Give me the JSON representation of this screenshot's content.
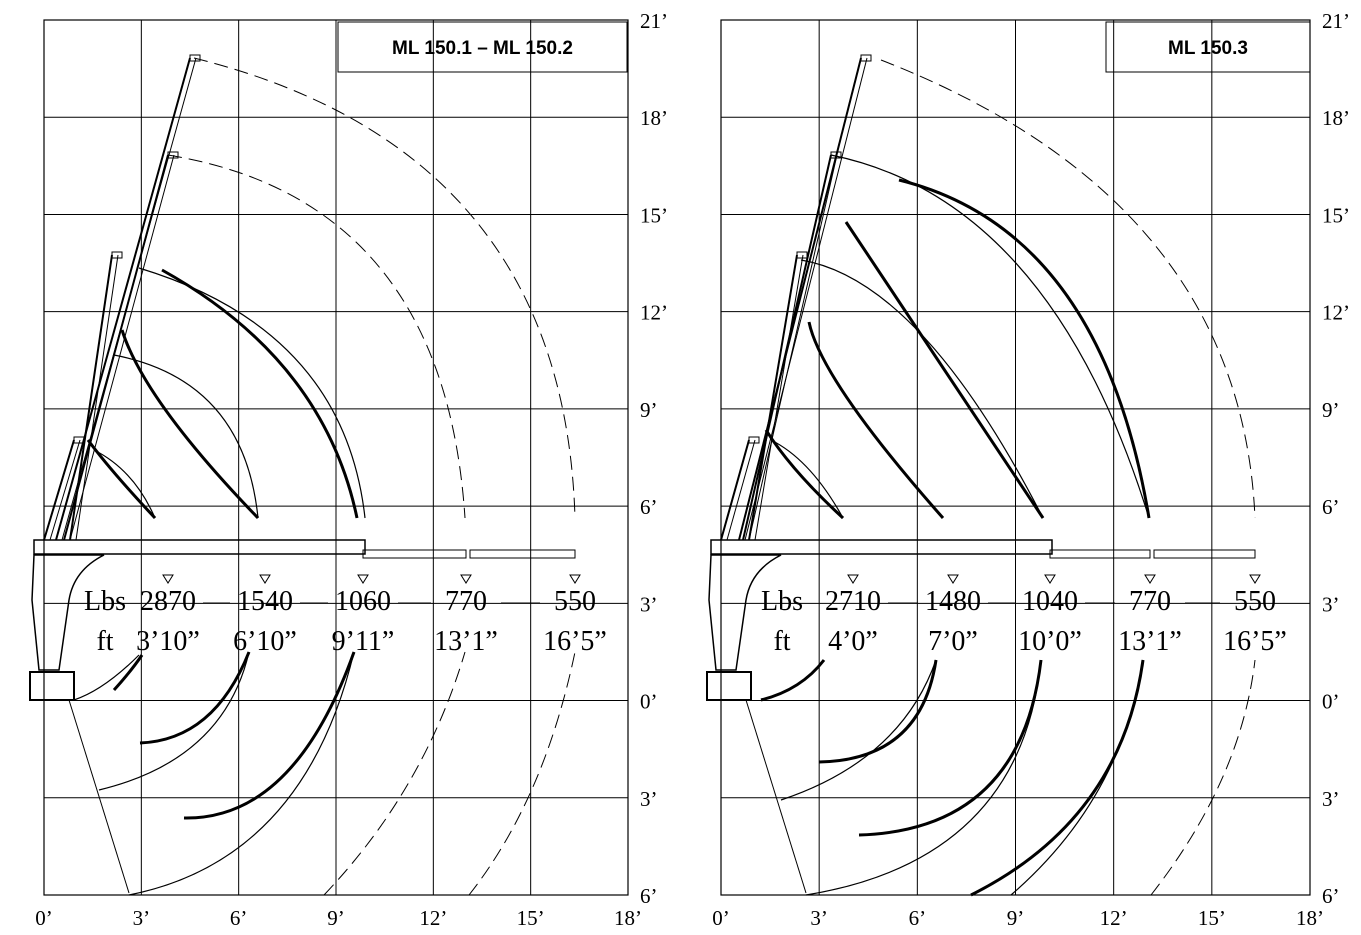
{
  "axis_labels": {
    "x": [
      "0’",
      "3’",
      "6’",
      "9’",
      "12’",
      "15’",
      "18’"
    ],
    "y": [
      "21’",
      "18’",
      "15’",
      "12’",
      "9’",
      "6’",
      "3’",
      "0’",
      "3’",
      "6’"
    ]
  },
  "panels": [
    {
      "title": "ML 150.1 – ML 150.2",
      "load_unit": "Lbs",
      "reach_unit": "ft",
      "loads": [
        2870,
        1540,
        1060,
        770,
        550
      ],
      "reaches": [
        "3’10”",
        "6’10”",
        "9’11”",
        "13’1”",
        "16’5”"
      ]
    },
    {
      "title": "ML 150.3",
      "load_unit": "Lbs",
      "reach_unit": "ft",
      "loads": [
        2710,
        1480,
        1040,
        770,
        550
      ],
      "reaches": [
        "4’0”",
        "7’0”",
        "10’0”",
        "13’1”",
        "16’5”"
      ]
    }
  ]
}
